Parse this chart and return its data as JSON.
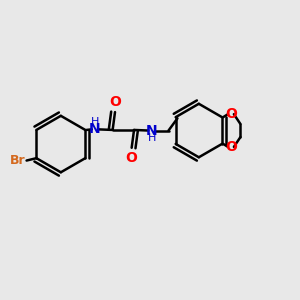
{
  "background_color": "#e8e8e8",
  "bond_color": "#000000",
  "N_color": "#0000cd",
  "O_color": "#ff0000",
  "Br_color": "#d4691e",
  "line_width": 1.8,
  "font_size": 9,
  "fig_size": [
    3.0,
    3.0
  ],
  "dpi": 100,
  "xlim": [
    0,
    10
  ],
  "ylim": [
    0,
    10
  ]
}
